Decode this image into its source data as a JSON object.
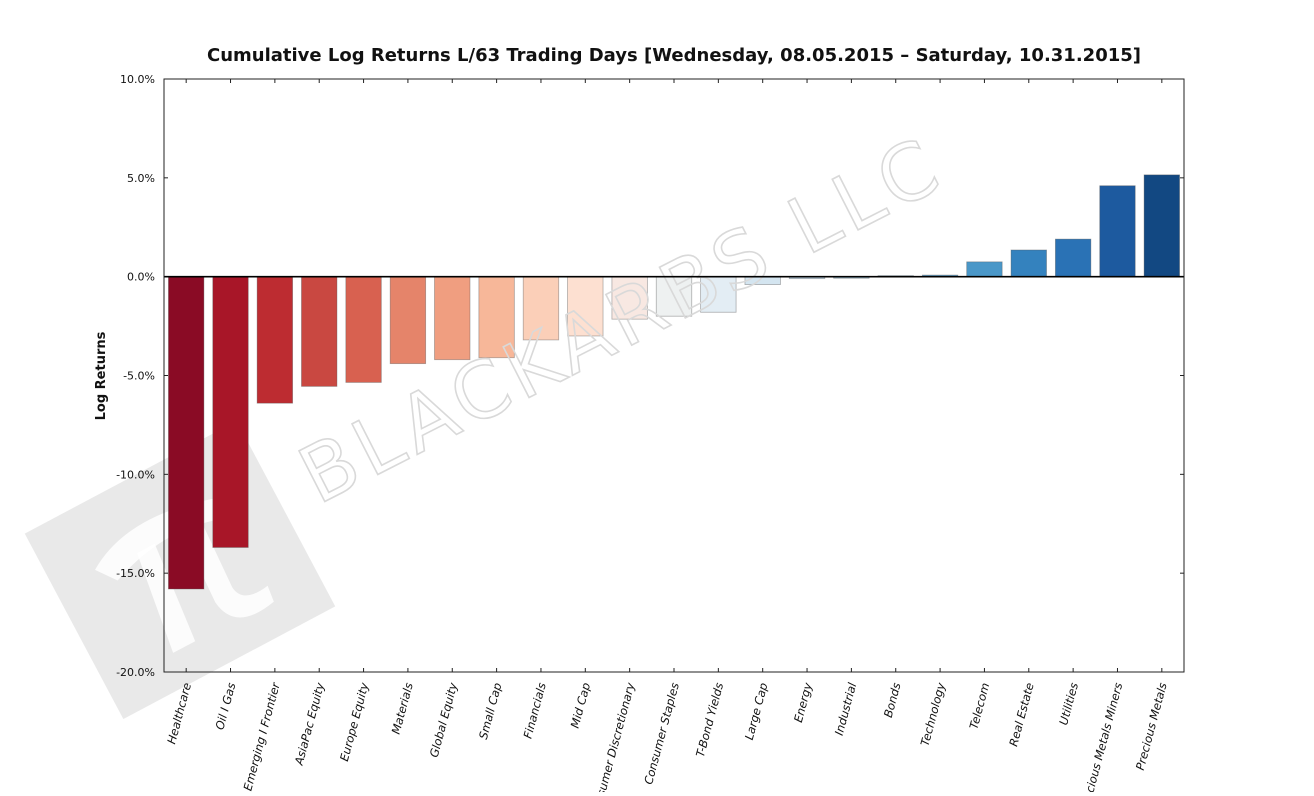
{
  "chart_data": {
    "type": "bar",
    "title": "Cumulative Log Returns L/63 Trading Days  [Wednesday, 08.05.2015 – Saturday, 10.31.2015]",
    "xlabel": "",
    "ylabel": "Log Returns",
    "ylim": [
      -20,
      10
    ],
    "yticks": [
      10,
      5,
      0,
      -5,
      -10,
      -15,
      -20
    ],
    "ytick_labels": [
      "10.0%",
      "5.0%",
      "0.0%",
      "-5.0%",
      "-10.0%",
      "-15.0%",
      "-20.0%"
    ],
    "categories": [
      "Healthcare",
      "Oil I Gas",
      "Emerging I Frontier",
      "AsiaPac Equity",
      "Europe Equity",
      "Materials",
      "Global Equity",
      "Small Cap",
      "Financials",
      "Mid Cap",
      "Consumer Discretionary",
      "Consumer Staples",
      "T-Bond Yields",
      "Large Cap",
      "Energy",
      "Industrial",
      "Bonds",
      "Technology",
      "Telecom",
      "Real Estate",
      "Utilities",
      "Precious Metals Miners",
      "Precious Metals"
    ],
    "values": [
      -15.8,
      -13.7,
      -6.4,
      -5.55,
      -5.35,
      -4.4,
      -4.2,
      -4.1,
      -3.2,
      -3.0,
      -2.15,
      -2.0,
      -1.8,
      -0.4,
      -0.1,
      -0.08,
      0.05,
      0.08,
      0.75,
      1.35,
      1.9,
      4.6,
      5.15
    ],
    "colors": [
      "#8a0b25",
      "#a81628",
      "#bd2c31",
      "#c94841",
      "#d86150",
      "#e5846a",
      "#f09e80",
      "#f7b799",
      "#fbcfb8",
      "#fde0d1",
      "#f8e8e2",
      "#eef1f1",
      "#e3edf4",
      "#d4e5f0",
      "#c0d9ea",
      "#a6cce3",
      "#87bbda",
      "#5ea0cc",
      "#4a97c8",
      "#3482be",
      "#2a72b5",
      "#1d5a9f",
      "#124882"
    ],
    "grid": false,
    "legend": "none"
  },
  "watermark": {
    "text": "BLACKARBS LLC",
    "logo_icon": "pi-logo-icon"
  }
}
